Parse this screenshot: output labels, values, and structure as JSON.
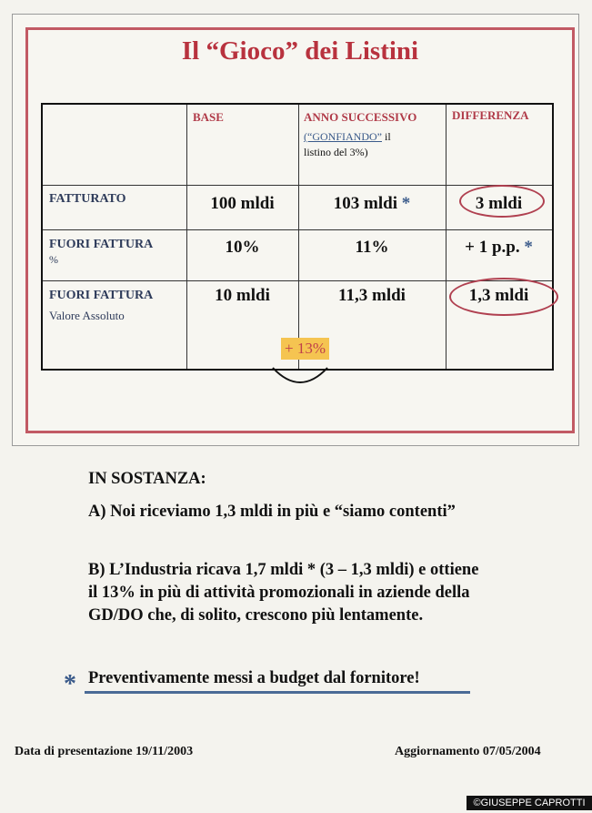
{
  "title": "Il “Gioco” dei Listini",
  "table": {
    "headers": [
      "BASE",
      "ANNO SUCCESSIVO",
      "DIFFERENZA"
    ],
    "header_note_link": "(“GONFIANDO”",
    "header_note_rest": " il",
    "header_note_line2": "listino del 3%)",
    "rows": [
      {
        "label": "FATTURATO",
        "sub": "",
        "base": "100 mldi",
        "next": "103 mldi",
        "next_star": " *",
        "diff": "3 mldi",
        "diff_star": ""
      },
      {
        "label": "FUORI FATTURA",
        "sub": "%",
        "base": "10%",
        "next": "11%",
        "next_star": "",
        "diff": "+ 1 p.p.",
        "diff_star": " *"
      },
      {
        "label": "FUORI FATTURA",
        "sub": "Valore Assoluto",
        "base": "10 mldi",
        "next": "11,3 mldi",
        "next_star": "",
        "diff": "1,3 mldi",
        "diff_star": ""
      }
    ],
    "highlight": "+ 13%"
  },
  "summary": {
    "heading": "IN SOSTANZA:",
    "a": "A) Noi riceviamo 1,3 mldi in più  e “siamo contenti”",
    "b": [
      "B) L’Industria ricava 1,7 mldi * (3 – 1,3 mldi) e ottiene",
      "il 13% in più di attività promozionali in aziende della",
      "GD/DO che, di solito, crescono più lentamente."
    ],
    "footnote_mark": "*",
    "footnote": "Preventivamente messi a budget dal fornitore!"
  },
  "footer": {
    "left": "Data di presentazione  19/11/2003",
    "right": "Aggiornamento 07/05/2004",
    "watermark": "©GIUSEPPE CAPROTTI"
  },
  "colors": {
    "title": "#b8323e",
    "header": "#b03a48",
    "row_label": "#2e3b5a",
    "highlight": "#f5c451",
    "underline": "#4a6a96"
  }
}
